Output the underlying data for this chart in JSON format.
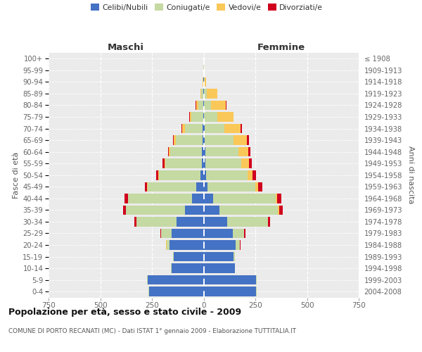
{
  "age_groups": [
    "0-4",
    "5-9",
    "10-14",
    "15-19",
    "20-24",
    "25-29",
    "30-34",
    "35-39",
    "40-44",
    "45-49",
    "50-54",
    "55-59",
    "60-64",
    "65-69",
    "70-74",
    "75-79",
    "80-84",
    "85-89",
    "90-94",
    "95-99",
    "100+"
  ],
  "birth_years": [
    "2004-2008",
    "1999-2003",
    "1994-1998",
    "1989-1993",
    "1984-1988",
    "1979-1983",
    "1974-1978",
    "1969-1973",
    "1964-1968",
    "1959-1963",
    "1954-1958",
    "1949-1953",
    "1944-1948",
    "1939-1943",
    "1934-1938",
    "1929-1933",
    "1924-1928",
    "1919-1923",
    "1914-1918",
    "1909-1913",
    "≤ 1908"
  ],
  "males_celibi": [
    265,
    270,
    155,
    145,
    165,
    155,
    130,
    90,
    55,
    35,
    15,
    10,
    8,
    5,
    5,
    3,
    2,
    1,
    1,
    0,
    0
  ],
  "males_coniugati": [
    2,
    3,
    3,
    3,
    15,
    50,
    195,
    285,
    310,
    235,
    200,
    175,
    155,
    130,
    85,
    55,
    25,
    10,
    2,
    1,
    0
  ],
  "males_vedovi": [
    0,
    0,
    0,
    0,
    1,
    1,
    1,
    2,
    2,
    3,
    5,
    5,
    5,
    10,
    15,
    10,
    10,
    5,
    2,
    0,
    0
  ],
  "males_divorziati": [
    0,
    0,
    0,
    0,
    2,
    3,
    8,
    12,
    15,
    12,
    10,
    8,
    5,
    3,
    2,
    2,
    1,
    0,
    0,
    0,
    0
  ],
  "females_nubili": [
    255,
    255,
    150,
    145,
    155,
    140,
    115,
    75,
    45,
    20,
    12,
    8,
    7,
    5,
    4,
    3,
    2,
    1,
    1,
    0,
    0
  ],
  "females_coniugate": [
    2,
    2,
    3,
    5,
    20,
    55,
    195,
    285,
    305,
    230,
    200,
    175,
    160,
    140,
    95,
    65,
    35,
    15,
    3,
    1,
    0
  ],
  "females_vedove": [
    0,
    0,
    0,
    0,
    1,
    1,
    2,
    4,
    5,
    15,
    25,
    35,
    50,
    65,
    80,
    75,
    70,
    50,
    8,
    2,
    0
  ],
  "females_divorziate": [
    0,
    0,
    0,
    1,
    2,
    5,
    10,
    18,
    22,
    20,
    18,
    15,
    10,
    8,
    5,
    3,
    2,
    1,
    0,
    0,
    0
  ],
  "colors_celibi": "#4472C4",
  "colors_coniugati": "#C5D9A3",
  "colors_vedovi": "#FAC858",
  "colors_divorziati": "#D0001E",
  "xlim": 750,
  "title": "Popolazione per età, sesso e stato civile - 2009",
  "subtitle": "COMUNE DI PORTO RECANATI (MC) - Dati ISTAT 1° gennaio 2009 - Elaborazione TUTTITALIA.IT",
  "header_left": "Maschi",
  "header_right": "Femmine",
  "ylabel_left": "Fasce di età",
  "ylabel_right": "Anni di nascita",
  "bg_color": "#ffffff",
  "plot_bg": "#ebebeb"
}
